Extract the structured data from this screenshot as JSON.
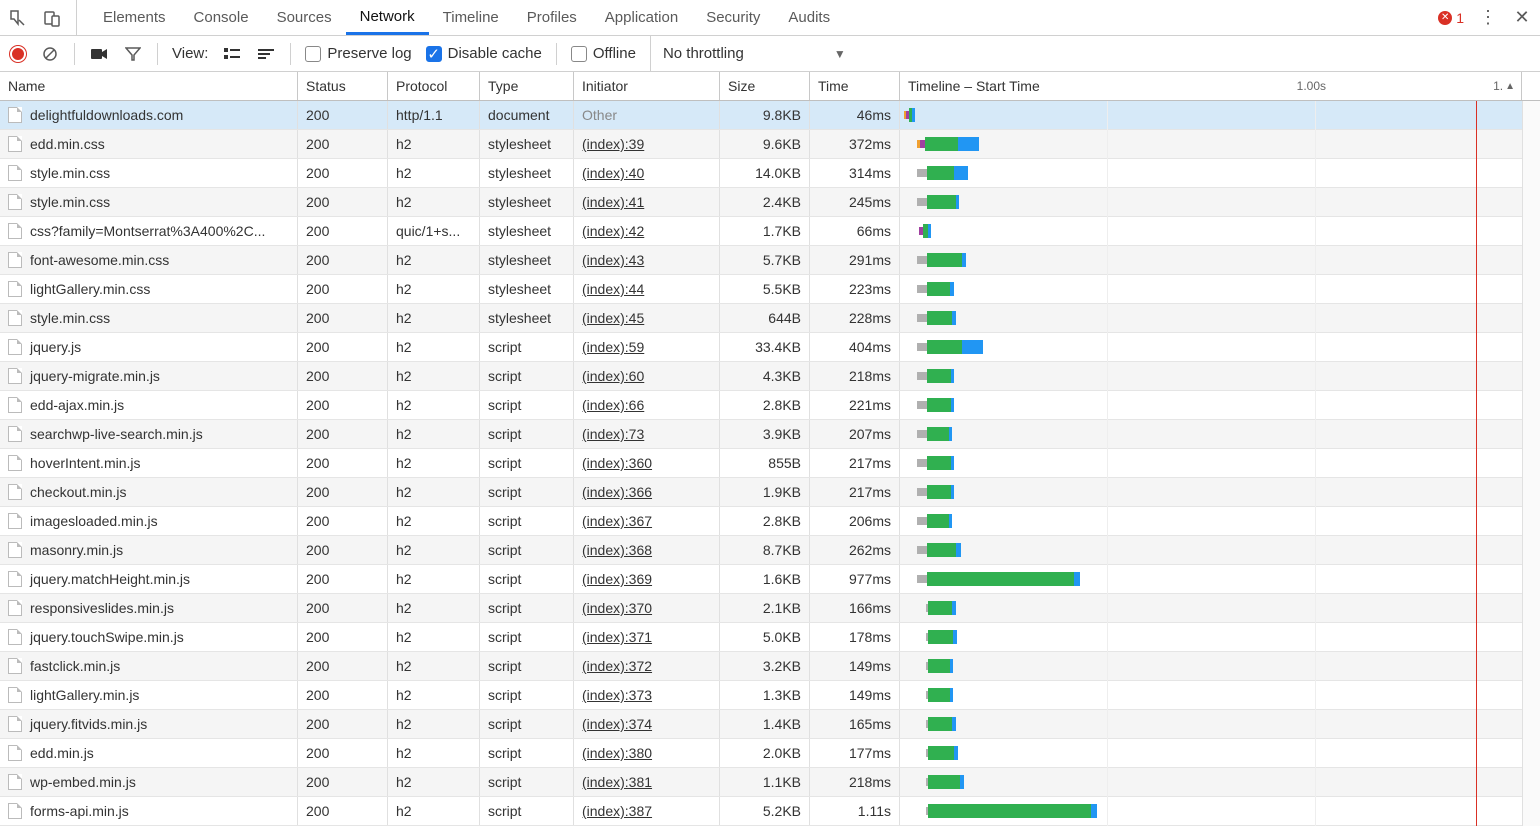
{
  "errors_count": "1",
  "tabs": [
    {
      "label": "Elements",
      "active": false
    },
    {
      "label": "Console",
      "active": false
    },
    {
      "label": "Sources",
      "active": false
    },
    {
      "label": "Network",
      "active": true
    },
    {
      "label": "Timeline",
      "active": false
    },
    {
      "label": "Profiles",
      "active": false
    },
    {
      "label": "Application",
      "active": false
    },
    {
      "label": "Security",
      "active": false
    },
    {
      "label": "Audits",
      "active": false
    }
  ],
  "toolbar": {
    "view_label": "View:",
    "preserve_log_label": "Preserve log",
    "preserve_log_checked": false,
    "disable_cache_label": "Disable cache",
    "disable_cache_checked": true,
    "offline_label": "Offline",
    "offline_checked": false,
    "throttling_label": "No throttling"
  },
  "columns": {
    "name": "Name",
    "status": "Status",
    "protocol": "Protocol",
    "type": "Type",
    "initiator": "Initiator",
    "size": "Size",
    "time": "Time",
    "timeline": "Timeline – Start Time"
  },
  "timeline": {
    "total_ms": 1500,
    "ticks": [
      {
        "label": "1.00s",
        "at_ms": 1000
      }
    ],
    "red_line_at_ms": 1390,
    "end_label": "1.",
    "colors": {
      "queued": "#b0b0b0",
      "dns": "#f0a030",
      "connect": "#a040a0",
      "wait": "#30b050",
      "content": "#2196f3"
    }
  },
  "rows": [
    {
      "name": "delightfuldownloads.com",
      "status": "200",
      "protocol": "http/1.1",
      "type": "document",
      "initiator": "Other",
      "initiator_link": false,
      "size": "9.8KB",
      "time": "46ms",
      "selected": true,
      "wf": [
        {
          "c": "dns",
          "s": 10,
          "e": 14,
          "thin": true
        },
        {
          "c": "connect",
          "s": 14,
          "e": 22,
          "thin": true
        },
        {
          "c": "wait",
          "s": 22,
          "e": 30
        },
        {
          "c": "content",
          "s": 30,
          "e": 36
        }
      ]
    },
    {
      "name": "edd.min.css",
      "status": "200",
      "protocol": "h2",
      "type": "stylesheet",
      "initiator": "(index):39",
      "initiator_link": true,
      "size": "9.6KB",
      "time": "372ms",
      "wf": [
        {
          "c": "dns",
          "s": 40,
          "e": 48,
          "thin": true
        },
        {
          "c": "connect",
          "s": 48,
          "e": 60,
          "thin": true
        },
        {
          "c": "wait",
          "s": 60,
          "e": 140
        },
        {
          "c": "content",
          "s": 140,
          "e": 190
        }
      ]
    },
    {
      "name": "style.min.css",
      "status": "200",
      "protocol": "h2",
      "type": "stylesheet",
      "initiator": "(index):40",
      "initiator_link": true,
      "size": "14.0KB",
      "time": "314ms",
      "wf": [
        {
          "c": "queued",
          "s": 40,
          "e": 65,
          "thin": true
        },
        {
          "c": "wait",
          "s": 65,
          "e": 130
        },
        {
          "c": "content",
          "s": 130,
          "e": 165
        }
      ]
    },
    {
      "name": "style.min.css",
      "status": "200",
      "protocol": "h2",
      "type": "stylesheet",
      "initiator": "(index):41",
      "initiator_link": true,
      "size": "2.4KB",
      "time": "245ms",
      "wf": [
        {
          "c": "queued",
          "s": 40,
          "e": 65,
          "thin": true
        },
        {
          "c": "wait",
          "s": 65,
          "e": 135
        },
        {
          "c": "content",
          "s": 135,
          "e": 142
        }
      ]
    },
    {
      "name": "css?family=Montserrat%3A400%2C...",
      "status": "200",
      "protocol": "quic/1+s...",
      "type": "stylesheet",
      "initiator": "(index):42",
      "initiator_link": true,
      "size": "1.7KB",
      "time": "66ms",
      "wf": [
        {
          "c": "connect",
          "s": 45,
          "e": 55,
          "thin": true
        },
        {
          "c": "wait",
          "s": 55,
          "e": 68
        },
        {
          "c": "content",
          "s": 68,
          "e": 75
        }
      ]
    },
    {
      "name": "font-awesome.min.css",
      "status": "200",
      "protocol": "h2",
      "type": "stylesheet",
      "initiator": "(index):43",
      "initiator_link": true,
      "size": "5.7KB",
      "time": "291ms",
      "wf": [
        {
          "c": "queued",
          "s": 40,
          "e": 65,
          "thin": true
        },
        {
          "c": "wait",
          "s": 65,
          "e": 150
        },
        {
          "c": "content",
          "s": 150,
          "e": 158
        }
      ]
    },
    {
      "name": "lightGallery.min.css",
      "status": "200",
      "protocol": "h2",
      "type": "stylesheet",
      "initiator": "(index):44",
      "initiator_link": true,
      "size": "5.5KB",
      "time": "223ms",
      "wf": [
        {
          "c": "queued",
          "s": 40,
          "e": 65,
          "thin": true
        },
        {
          "c": "wait",
          "s": 65,
          "e": 120
        },
        {
          "c": "content",
          "s": 120,
          "e": 130
        }
      ]
    },
    {
      "name": "style.min.css",
      "status": "200",
      "protocol": "h2",
      "type": "stylesheet",
      "initiator": "(index):45",
      "initiator_link": true,
      "size": "644B",
      "time": "228ms",
      "wf": [
        {
          "c": "queued",
          "s": 40,
          "e": 65,
          "thin": true
        },
        {
          "c": "wait",
          "s": 65,
          "e": 125
        },
        {
          "c": "content",
          "s": 125,
          "e": 135
        }
      ]
    },
    {
      "name": "jquery.js",
      "status": "200",
      "protocol": "h2",
      "type": "script",
      "initiator": "(index):59",
      "initiator_link": true,
      "size": "33.4KB",
      "time": "404ms",
      "wf": [
        {
          "c": "queued",
          "s": 40,
          "e": 65,
          "thin": true
        },
        {
          "c": "wait",
          "s": 65,
          "e": 150
        },
        {
          "c": "content",
          "s": 150,
          "e": 200
        }
      ]
    },
    {
      "name": "jquery-migrate.min.js",
      "status": "200",
      "protocol": "h2",
      "type": "script",
      "initiator": "(index):60",
      "initiator_link": true,
      "size": "4.3KB",
      "time": "218ms",
      "wf": [
        {
          "c": "queued",
          "s": 40,
          "e": 65,
          "thin": true
        },
        {
          "c": "wait",
          "s": 65,
          "e": 122
        },
        {
          "c": "content",
          "s": 122,
          "e": 130
        }
      ]
    },
    {
      "name": "edd-ajax.min.js",
      "status": "200",
      "protocol": "h2",
      "type": "script",
      "initiator": "(index):66",
      "initiator_link": true,
      "size": "2.8KB",
      "time": "221ms",
      "wf": [
        {
          "c": "queued",
          "s": 40,
          "e": 65,
          "thin": true
        },
        {
          "c": "wait",
          "s": 65,
          "e": 122
        },
        {
          "c": "content",
          "s": 122,
          "e": 130
        }
      ]
    },
    {
      "name": "searchwp-live-search.min.js",
      "status": "200",
      "protocol": "h2",
      "type": "script",
      "initiator": "(index):73",
      "initiator_link": true,
      "size": "3.9KB",
      "time": "207ms",
      "wf": [
        {
          "c": "queued",
          "s": 40,
          "e": 65,
          "thin": true
        },
        {
          "c": "wait",
          "s": 65,
          "e": 118
        },
        {
          "c": "content",
          "s": 118,
          "e": 126
        }
      ]
    },
    {
      "name": "hoverIntent.min.js",
      "status": "200",
      "protocol": "h2",
      "type": "script",
      "initiator": "(index):360",
      "initiator_link": true,
      "size": "855B",
      "time": "217ms",
      "wf": [
        {
          "c": "queued",
          "s": 40,
          "e": 65,
          "thin": true
        },
        {
          "c": "wait",
          "s": 65,
          "e": 122
        },
        {
          "c": "content",
          "s": 122,
          "e": 130
        }
      ]
    },
    {
      "name": "checkout.min.js",
      "status": "200",
      "protocol": "h2",
      "type": "script",
      "initiator": "(index):366",
      "initiator_link": true,
      "size": "1.9KB",
      "time": "217ms",
      "wf": [
        {
          "c": "queued",
          "s": 40,
          "e": 65,
          "thin": true
        },
        {
          "c": "wait",
          "s": 65,
          "e": 122
        },
        {
          "c": "content",
          "s": 122,
          "e": 130
        }
      ]
    },
    {
      "name": "imagesloaded.min.js",
      "status": "200",
      "protocol": "h2",
      "type": "script",
      "initiator": "(index):367",
      "initiator_link": true,
      "size": "2.8KB",
      "time": "206ms",
      "wf": [
        {
          "c": "queued",
          "s": 40,
          "e": 65,
          "thin": true
        },
        {
          "c": "wait",
          "s": 65,
          "e": 118
        },
        {
          "c": "content",
          "s": 118,
          "e": 126
        }
      ]
    },
    {
      "name": "masonry.min.js",
      "status": "200",
      "protocol": "h2",
      "type": "script",
      "initiator": "(index):368",
      "initiator_link": true,
      "size": "8.7KB",
      "time": "262ms",
      "wf": [
        {
          "c": "queued",
          "s": 40,
          "e": 65,
          "thin": true
        },
        {
          "c": "wait",
          "s": 65,
          "e": 135
        },
        {
          "c": "content",
          "s": 135,
          "e": 148
        }
      ]
    },
    {
      "name": "jquery.matchHeight.min.js",
      "status": "200",
      "protocol": "h2",
      "type": "script",
      "initiator": "(index):369",
      "initiator_link": true,
      "size": "1.6KB",
      "time": "977ms",
      "wf": [
        {
          "c": "queued",
          "s": 40,
          "e": 65,
          "thin": true
        },
        {
          "c": "wait",
          "s": 65,
          "e": 420
        },
        {
          "c": "content",
          "s": 420,
          "e": 435
        }
      ]
    },
    {
      "name": "responsiveslides.min.js",
      "status": "200",
      "protocol": "h2",
      "type": "script",
      "initiator": "(index):370",
      "initiator_link": true,
      "size": "2.1KB",
      "time": "166ms",
      "wf": [
        {
          "c": "queued",
          "s": 62,
          "e": 68,
          "thin": true
        },
        {
          "c": "wait",
          "s": 68,
          "e": 125
        },
        {
          "c": "content",
          "s": 125,
          "e": 135
        }
      ]
    },
    {
      "name": "jquery.touchSwipe.min.js",
      "status": "200",
      "protocol": "h2",
      "type": "script",
      "initiator": "(index):371",
      "initiator_link": true,
      "size": "5.0KB",
      "time": "178ms",
      "wf": [
        {
          "c": "queued",
          "s": 62,
          "e": 68,
          "thin": true
        },
        {
          "c": "wait",
          "s": 68,
          "e": 128
        },
        {
          "c": "content",
          "s": 128,
          "e": 138
        }
      ]
    },
    {
      "name": "fastclick.min.js",
      "status": "200",
      "protocol": "h2",
      "type": "script",
      "initiator": "(index):372",
      "initiator_link": true,
      "size": "3.2KB",
      "time": "149ms",
      "wf": [
        {
          "c": "queued",
          "s": 62,
          "e": 68,
          "thin": true
        },
        {
          "c": "wait",
          "s": 68,
          "e": 120
        },
        {
          "c": "content",
          "s": 120,
          "e": 128
        }
      ]
    },
    {
      "name": "lightGallery.min.js",
      "status": "200",
      "protocol": "h2",
      "type": "script",
      "initiator": "(index):373",
      "initiator_link": true,
      "size": "1.3KB",
      "time": "149ms",
      "wf": [
        {
          "c": "queued",
          "s": 62,
          "e": 68,
          "thin": true
        },
        {
          "c": "wait",
          "s": 68,
          "e": 120
        },
        {
          "c": "content",
          "s": 120,
          "e": 128
        }
      ]
    },
    {
      "name": "jquery.fitvids.min.js",
      "status": "200",
      "protocol": "h2",
      "type": "script",
      "initiator": "(index):374",
      "initiator_link": true,
      "size": "1.4KB",
      "time": "165ms",
      "wf": [
        {
          "c": "queued",
          "s": 62,
          "e": 68,
          "thin": true
        },
        {
          "c": "wait",
          "s": 68,
          "e": 126
        },
        {
          "c": "content",
          "s": 126,
          "e": 134
        }
      ]
    },
    {
      "name": "edd.min.js",
      "status": "200",
      "protocol": "h2",
      "type": "script",
      "initiator": "(index):380",
      "initiator_link": true,
      "size": "2.0KB",
      "time": "177ms",
      "wf": [
        {
          "c": "queued",
          "s": 62,
          "e": 68,
          "thin": true
        },
        {
          "c": "wait",
          "s": 68,
          "e": 130
        },
        {
          "c": "content",
          "s": 130,
          "e": 140
        }
      ]
    },
    {
      "name": "wp-embed.min.js",
      "status": "200",
      "protocol": "h2",
      "type": "script",
      "initiator": "(index):381",
      "initiator_link": true,
      "size": "1.1KB",
      "time": "218ms",
      "wf": [
        {
          "c": "queued",
          "s": 62,
          "e": 68,
          "thin": true
        },
        {
          "c": "wait",
          "s": 68,
          "e": 145
        },
        {
          "c": "content",
          "s": 145,
          "e": 155
        }
      ]
    },
    {
      "name": "forms-api.min.js",
      "status": "200",
      "protocol": "h2",
      "type": "script",
      "initiator": "(index):387",
      "initiator_link": true,
      "size": "5.2KB",
      "time": "1.11s",
      "wf": [
        {
          "c": "queued",
          "s": 62,
          "e": 68,
          "thin": true
        },
        {
          "c": "wait",
          "s": 68,
          "e": 460
        },
        {
          "c": "content",
          "s": 460,
          "e": 475
        }
      ]
    }
  ]
}
